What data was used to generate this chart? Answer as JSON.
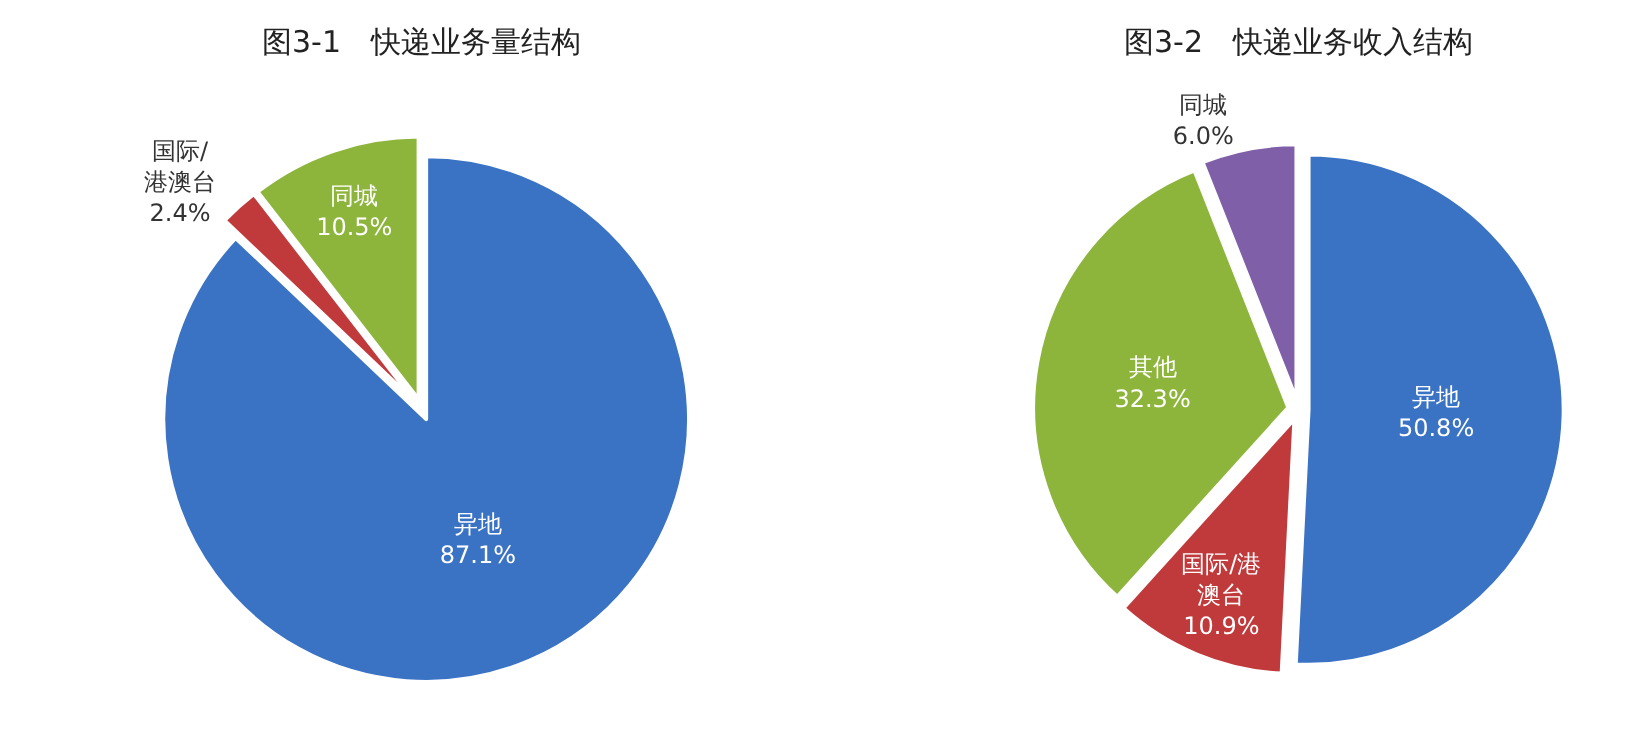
{
  "chart_data": [
    {
      "type": "pie",
      "title": "图3-1　快递业务量结构",
      "categories": [
        "异地",
        "国际/港澳台",
        "同城"
      ],
      "values": [
        87.1,
        2.4,
        10.5
      ],
      "value_labels": [
        "87.1%",
        "2.4%",
        "10.5%"
      ],
      "colors": [
        "#3a72c4",
        "#c0393b",
        "#8db53c"
      ]
    },
    {
      "type": "pie",
      "title": "图3-2　快递业务收入结构",
      "categories": [
        "异地",
        "国际/港澳台",
        "其他",
        "同城"
      ],
      "values": [
        50.8,
        10.9,
        32.3,
        6.0
      ],
      "value_labels": [
        "50.8%",
        "10.9%",
        "32.3%",
        "6.0%"
      ],
      "colors": [
        "#3a72c4",
        "#c0393b",
        "#8db53c",
        "#7f5fa8"
      ]
    }
  ]
}
